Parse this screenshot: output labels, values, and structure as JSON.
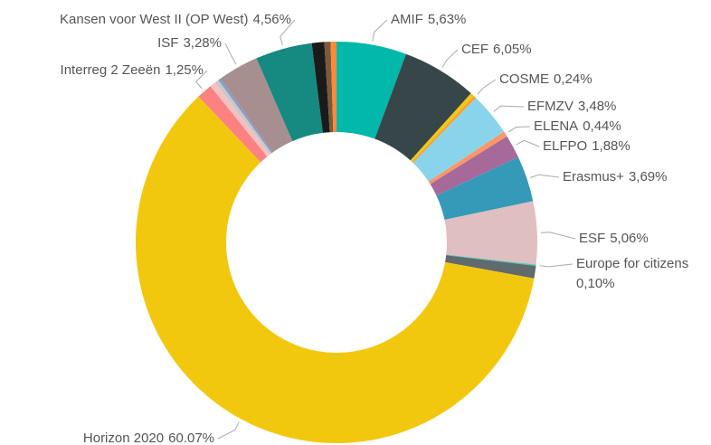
{
  "chart_data": {
    "type": "pie",
    "categories": [
      "AMIF",
      "CEF",
      null,
      "COSME",
      "EFMZV",
      "ELENA",
      "ELFPO",
      "Erasmus+",
      "ESF",
      "Europe for citizens",
      null,
      "Horizon 2020",
      "Interreg 2 Zeeën",
      null,
      null,
      null,
      "ISF",
      "Kansen voor West II (OP West)",
      null,
      null,
      null
    ],
    "values": [
      5.63,
      6.05,
      0.3,
      0.24,
      3.48,
      0.44,
      1.88,
      3.69,
      5.06,
      0.1,
      1.0,
      60.07,
      1.25,
      0.5,
      0.3,
      0.2,
      3.28,
      4.56,
      1.0,
      0.5,
      0.47
    ],
    "value_labels": [
      "5,63%",
      "6,05%",
      null,
      "0,24%",
      "3,48%",
      "0,44%",
      "1,88%",
      "3,69%",
      "5,06%",
      "0,10%",
      null,
      "60.07%",
      "1,25%",
      null,
      null,
      null,
      "3,28%",
      "4,56%",
      null,
      null,
      null
    ],
    "colors": [
      "#01b8aa",
      "#374649",
      "#f2c80f",
      "#f2a33a",
      "#8ad4eb",
      "#fe9666",
      "#a66999",
      "#3599b8",
      "#dfbfbf",
      "#4ac5bb",
      "#5f6b6d",
      "#f2c80f",
      "#fb8281",
      "#f4c0c0",
      "#c8c8c8",
      "#7f9fd0",
      "#a78f8f",
      "#168980",
      "#1a1a1a",
      "#7a5a3a",
      "#fd8a3a"
    ],
    "donut": true
  }
}
